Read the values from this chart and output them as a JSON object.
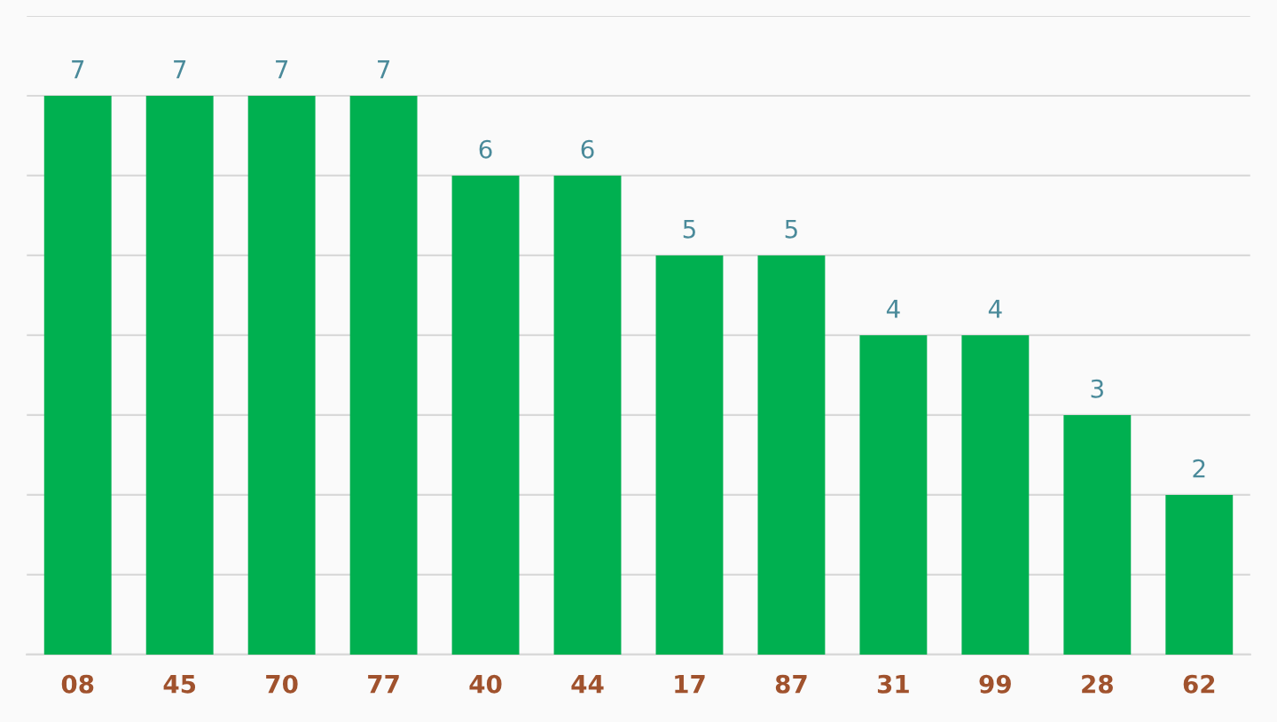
{
  "chart_data": {
    "type": "bar",
    "categories": [
      "08",
      "45",
      "70",
      "77",
      "40",
      "44",
      "17",
      "87",
      "31",
      "99",
      "28",
      "62"
    ],
    "values": [
      7,
      7,
      7,
      7,
      6,
      6,
      5,
      5,
      4,
      4,
      3,
      2
    ],
    "color": "#00b050",
    "ylim": [
      0,
      8
    ],
    "yticks": [
      {
        "value": 0,
        "label": null
      },
      {
        "value": 1,
        "label": null
      },
      {
        "value": 2,
        "label": null
      },
      {
        "value": 3,
        "label": null
      },
      {
        "value": 4,
        "label": null
      },
      {
        "value": 5,
        "label": null
      },
      {
        "value": 6,
        "label": null
      },
      {
        "value": 7,
        "label": null
      },
      {
        "value": 8,
        "label": null
      }
    ],
    "tick_labels": "x",
    "grid": "y",
    "data_labels": true,
    "legend": false
  }
}
